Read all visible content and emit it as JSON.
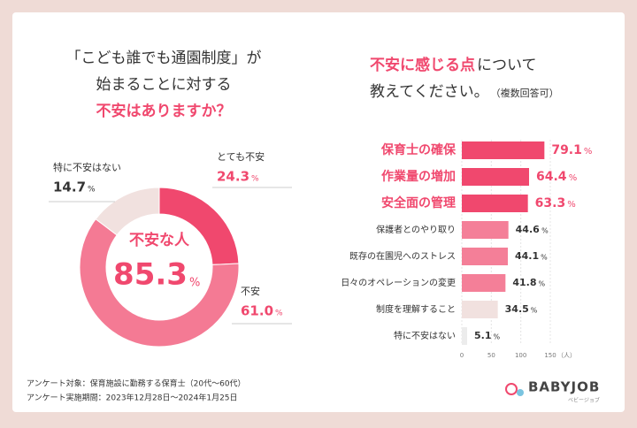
{
  "chart_data": [
    {
      "type": "donut",
      "title": [
        "「こども誰でも通園制度」が",
        "始まることに対する",
        "不安はありますか？"
      ],
      "categories": [
        "とても不安",
        "不安",
        "特に不安はない"
      ],
      "values": [
        24.3,
        61.0,
        14.7
      ],
      "value_labels": [
        "24.3",
        "61.0",
        "14.7"
      ],
      "colors": [
        "#f0486e",
        "#f47a94",
        "#f1e1df"
      ],
      "unit": "%",
      "center_label": "不安な人",
      "center_value": 85.3
    },
    {
      "type": "hbar",
      "title": [
        "不安に感じる点",
        "について",
        "教えてください。",
        "（複数回答可）"
      ],
      "categories": [
        "保育士の確保",
        "作業量の増加",
        "安全面の管理",
        "保護者とのやり取り",
        "既存の在園児へのストレス",
        "日々のオペレーションの変更",
        "制度を理解すること",
        "特に不安はない"
      ],
      "values": [
        140,
        114,
        112,
        79,
        78,
        74,
        61,
        9
      ],
      "percentages": [
        79.1,
        64.4,
        63.3,
        44.6,
        44.1,
        41.8,
        34.5,
        5.1
      ],
      "percent_unit": "%",
      "colors": [
        "#f0486e",
        "#f0486e",
        "#f0486e",
        "#f47f98",
        "#f47f98",
        "#f47f98",
        "#f1e1df",
        "#ececec"
      ],
      "xlim": [
        0,
        150
      ],
      "xticks": [
        0,
        50,
        100,
        150
      ],
      "xlabel": "（人）",
      "grid": true
    }
  ],
  "footer": {
    "notes": [
      "アンケート対象：保育施設に勤務する保育士（20代〜60代）",
      "アンケート実施期間：2023年12月28日〜2024年1月25日"
    ],
    "logo": "BABYJOB",
    "logo_sub": "ベビージョブ"
  }
}
